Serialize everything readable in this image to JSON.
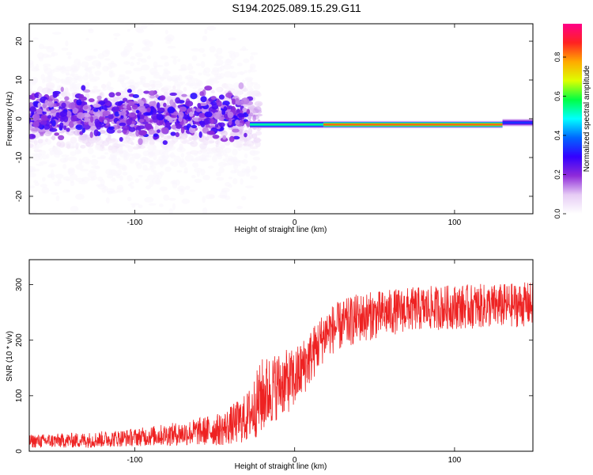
{
  "title": "S194.2025.089.15.29.G11",
  "chart_data": [
    {
      "type": "heatmap",
      "xlabel": "Height of straight line (km)",
      "ylabel": "Frequency (Hz)",
      "xlim": [
        -166,
        149
      ],
      "ylim": [
        -24.5,
        24.5
      ],
      "xticks": [
        -100,
        0,
        100
      ],
      "yticks": [
        -20,
        -10,
        0,
        10,
        20
      ],
      "colorbar": {
        "label": "Normalized spectral amplitude",
        "range": [
          0,
          0.97
        ],
        "ticks": [
          0.0,
          0.2,
          0.4,
          0.6,
          0.8
        ],
        "colormap": [
          "#ffffff",
          "#e6ccf5",
          "#8f2bd9",
          "#3300ff",
          "#0066ff",
          "#00ffff",
          "#00ff44",
          "#ddff00",
          "#ffaa00",
          "#ff2222",
          "#ff0088"
        ]
      },
      "ridge": {
        "description_segments": [
          {
            "x": [
              -166,
              -28
            ],
            "frequency": 1.0,
            "amplitude": 0.15,
            "noise_spread_hz": 22
          },
          {
            "x": [
              -28,
              18
            ],
            "frequency": -1.5,
            "amplitude": 0.55
          },
          {
            "x": [
              18,
              130
            ],
            "frequency": -1.5,
            "amplitude": 0.85
          },
          {
            "x": [
              130,
              149
            ],
            "frequency": -1.0,
            "amplitude": 0.35
          }
        ]
      }
    },
    {
      "type": "line",
      "xlabel": "Height of straight line (km)",
      "ylabel": "SNR (10 * v/v)",
      "xlim": [
        -166,
        149
      ],
      "ylim": [
        0,
        345
      ],
      "xticks": [
        -100,
        0,
        100
      ],
      "yticks": [
        0,
        100,
        200,
        300
      ],
      "color": "#ee2222",
      "series_envelope": [
        {
          "x": -166,
          "mean": 18,
          "spread": 12
        },
        {
          "x": -130,
          "mean": 20,
          "spread": 14
        },
        {
          "x": -100,
          "mean": 25,
          "spread": 16
        },
        {
          "x": -70,
          "mean": 32,
          "spread": 22
        },
        {
          "x": -45,
          "mean": 40,
          "spread": 30
        },
        {
          "x": -30,
          "mean": 60,
          "spread": 45
        },
        {
          "x": -20,
          "mean": 100,
          "spread": 70
        },
        {
          "x": -10,
          "mean": 120,
          "spread": 60
        },
        {
          "x": 0,
          "mean": 130,
          "spread": 55
        },
        {
          "x": 10,
          "mean": 170,
          "spread": 50
        },
        {
          "x": 20,
          "mean": 215,
          "spread": 45
        },
        {
          "x": 40,
          "mean": 240,
          "spread": 45
        },
        {
          "x": 70,
          "mean": 255,
          "spread": 40
        },
        {
          "x": 100,
          "mean": 260,
          "spread": 40
        },
        {
          "x": 130,
          "mean": 262,
          "spread": 40
        },
        {
          "x": 149,
          "mean": 265,
          "spread": 40
        }
      ]
    }
  ]
}
